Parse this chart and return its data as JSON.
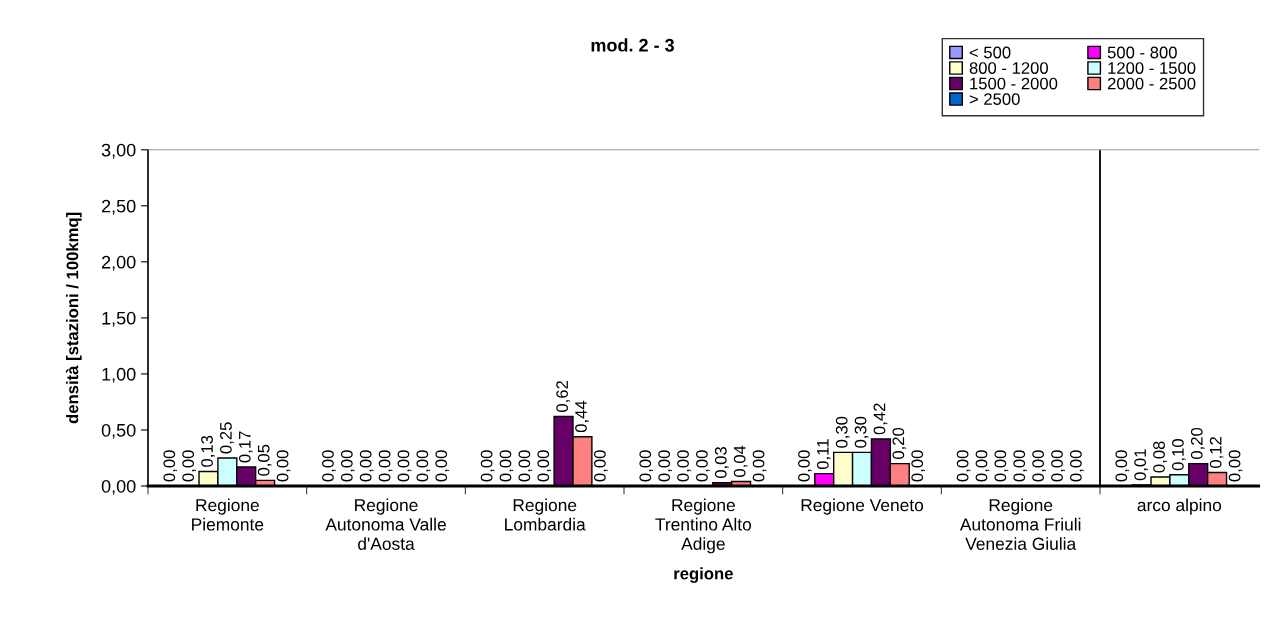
{
  "chart_data": {
    "type": "bar",
    "title": "mod. 2 - 3",
    "xlabel": "regione",
    "ylabel": "densità [stazioni / 100kmq]",
    "categories": [
      "Regione Piemonte",
      "Regione Autonoma Valle d'Aosta",
      "Regione Lombardia",
      "Regione Trentino Alto Adige",
      "Regione Veneto",
      "Regione Autonoma Friuli Venezia Giulia",
      "arco alpino"
    ],
    "series": [
      {
        "name": "< 500",
        "color": "#9999ff",
        "values": [
          0,
          0,
          0,
          0,
          0,
          0,
          0
        ],
        "value_labels": [
          "0,00",
          "0,00",
          "0,00",
          "0,00",
          "0,00",
          "0,00",
          "0,00"
        ]
      },
      {
        "name": "500 - 800",
        "color": "#ff00ff",
        "values": [
          0,
          0,
          0,
          0,
          0.11,
          0,
          0.01
        ],
        "value_labels": [
          "0,00",
          "0,00",
          "0,00",
          "0,00",
          "0,11",
          "0,00",
          "0,01"
        ]
      },
      {
        "name": "800 - 1200",
        "color": "#ffffcc",
        "values": [
          0.13,
          0,
          0,
          0,
          0.3,
          0,
          0.08
        ],
        "value_labels": [
          "0,13",
          "0,00",
          "0,00",
          "0,00",
          "0,30",
          "0,00",
          "0,08"
        ]
      },
      {
        "name": "1200 - 1500",
        "color": "#ccffff",
        "values": [
          0.25,
          0,
          0,
          0,
          0.3,
          0,
          0.1
        ],
        "value_labels": [
          "0,25",
          "0,00",
          "0,00",
          "0,00",
          "0,30",
          "0,00",
          "0,10"
        ]
      },
      {
        "name": "1500 - 2000",
        "color": "#660066",
        "values": [
          0.17,
          0,
          0.62,
          0.03,
          0.42,
          0,
          0.2
        ],
        "value_labels": [
          "0,17",
          "0,00",
          "0,62",
          "0,03",
          "0,42",
          "0,00",
          "0,20"
        ]
      },
      {
        "name": "2000 - 2500",
        "color": "#ff8080",
        "values": [
          0.05,
          0,
          0.44,
          0.04,
          0.2,
          0,
          0.12
        ],
        "value_labels": [
          "0,05",
          "0,00",
          "0,44",
          "0,04",
          "0,20",
          "0,00",
          "0,12"
        ]
      },
      {
        "name": "> 2500",
        "color": "#0066cc",
        "values": [
          0,
          0,
          0,
          0,
          0,
          0,
          0
        ],
        "value_labels": [
          "0,00",
          "0,00",
          "0,00",
          "0,00",
          "0,00",
          "0,00",
          "0,00"
        ]
      }
    ],
    "ylim": [
      0,
      3
    ],
    "yticks": [
      {
        "value": 0,
        "label": "0,00"
      },
      {
        "value": 0.5,
        "label": "0,50"
      },
      {
        "value": 1,
        "label": "1,00"
      },
      {
        "value": 1.5,
        "label": "1,50"
      },
      {
        "value": 2,
        "label": "2,00"
      },
      {
        "value": 2.5,
        "label": "2,50"
      },
      {
        "value": 3,
        "label": "3,00"
      }
    ],
    "legend": "top right"
  }
}
